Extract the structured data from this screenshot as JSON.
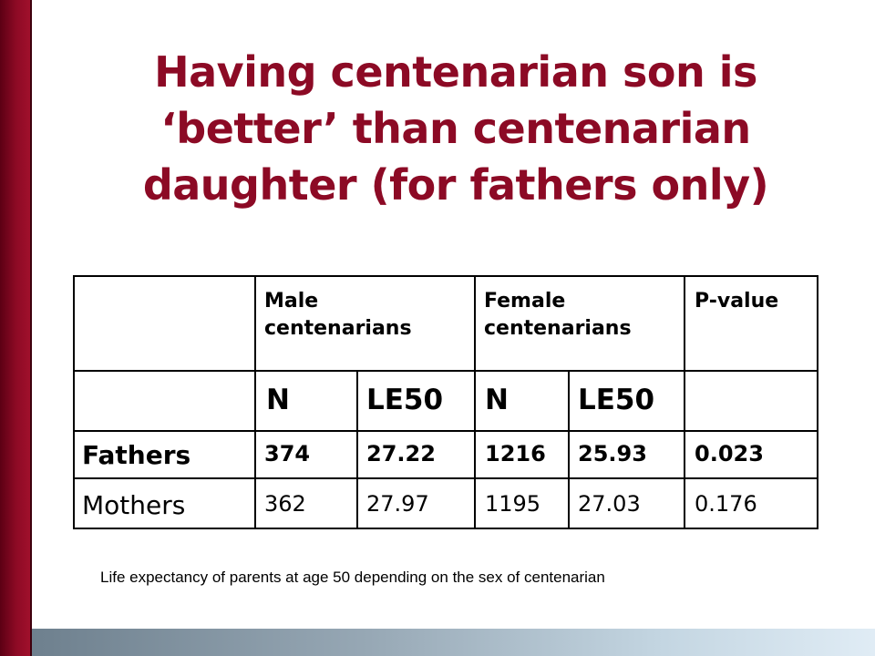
{
  "slide": {
    "title_lines": [
      "Having centenarian son is",
      "‘better’ than centenarian",
      "daughter (for fathers only)"
    ],
    "accent_color": "#8c0a25",
    "caption": "Life expectancy of parents at age 50 depending on the sex of centenarian"
  },
  "table": {
    "header": {
      "male": "Male centenarians",
      "male_lines": [
        "Male",
        "centenarians"
      ],
      "female_lines": [
        "Female",
        "centenarians"
      ],
      "pvalue": "P-value"
    },
    "subheader": [
      "N",
      "LE50",
      "N",
      "LE50"
    ],
    "rows": [
      {
        "label": "Fathers",
        "values": [
          "374",
          "27.22",
          "1216",
          "25.93",
          "0.023"
        ]
      },
      {
        "label": "Mothers",
        "values": [
          "362",
          "27.97",
          "1195",
          "27.03",
          "0.176"
        ]
      }
    ]
  }
}
